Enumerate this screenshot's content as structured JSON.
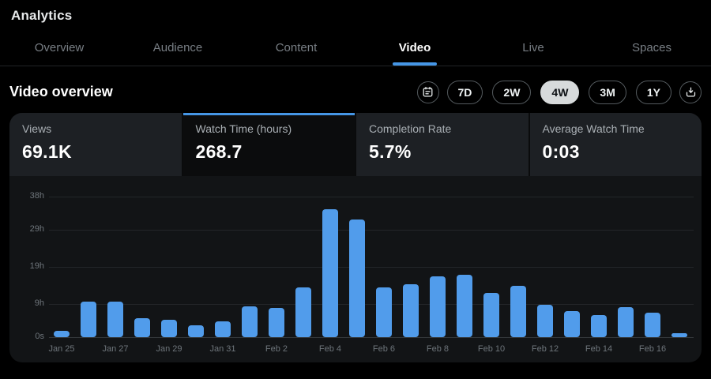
{
  "page": {
    "title": "Analytics"
  },
  "tabs": [
    {
      "label": "Overview",
      "active": false
    },
    {
      "label": "Audience",
      "active": false
    },
    {
      "label": "Content",
      "active": false
    },
    {
      "label": "Video",
      "active": true
    },
    {
      "label": "Live",
      "active": false
    },
    {
      "label": "Spaces",
      "active": false
    }
  ],
  "section": {
    "title": "Video overview"
  },
  "controls": {
    "calendar_icon": "calendar-icon",
    "download_icon": "download-icon",
    "ranges": [
      {
        "label": "7D",
        "selected": false
      },
      {
        "label": "2W",
        "selected": false
      },
      {
        "label": "4W",
        "selected": true
      },
      {
        "label": "3M",
        "selected": false
      },
      {
        "label": "1Y",
        "selected": false
      }
    ]
  },
  "stats": [
    {
      "label": "Views",
      "value": "69.1K",
      "selected": false
    },
    {
      "label": "Watch Time (hours)",
      "value": "268.7",
      "selected": true
    },
    {
      "label": "Completion Rate",
      "value": "5.7%",
      "selected": false
    },
    {
      "label": "Average Watch Time",
      "value": "0:03",
      "selected": false
    }
  ],
  "colors": {
    "accent": "#4596e6",
    "bar": "#519ceb",
    "selected_pill_bg": "#d7dadb",
    "card_bg": "#1d2024",
    "panel_bg": "#121416",
    "page_bg": "#000000"
  },
  "chart_data": {
    "type": "bar",
    "title": "",
    "xlabel": "",
    "ylabel": "",
    "x": [
      "Jan 25",
      "Jan 26",
      "Jan 27",
      "Jan 28",
      "Jan 29",
      "Jan 30",
      "Jan 31",
      "Feb 1",
      "Feb 2",
      "Feb 3",
      "Feb 4",
      "Feb 5",
      "Feb 6",
      "Feb 7",
      "Feb 8",
      "Feb 9",
      "Feb 10",
      "Feb 11",
      "Feb 12",
      "Feb 13",
      "Feb 14",
      "Feb 15",
      "Feb 16",
      "Feb 17"
    ],
    "values": [
      1.7,
      9.7,
      9.7,
      5.2,
      4.7,
      3.1,
      4.2,
      8.4,
      7.8,
      13.5,
      34.6,
      31.8,
      13.5,
      14.3,
      16.4,
      16.8,
      11.9,
      13.8,
      8.7,
      7.1,
      5.9,
      8.1,
      6.6,
      0.9
    ],
    "unit": "hours",
    "ylim": [
      0,
      38
    ],
    "yticks": [
      {
        "value": 0,
        "label": "0s"
      },
      {
        "value": 9,
        "label": "9h"
      },
      {
        "value": 19,
        "label": "19h"
      },
      {
        "value": 29,
        "label": "29h"
      },
      {
        "value": 38,
        "label": "38h"
      }
    ],
    "x_label_every": 2,
    "grid": true,
    "legend": false
  }
}
